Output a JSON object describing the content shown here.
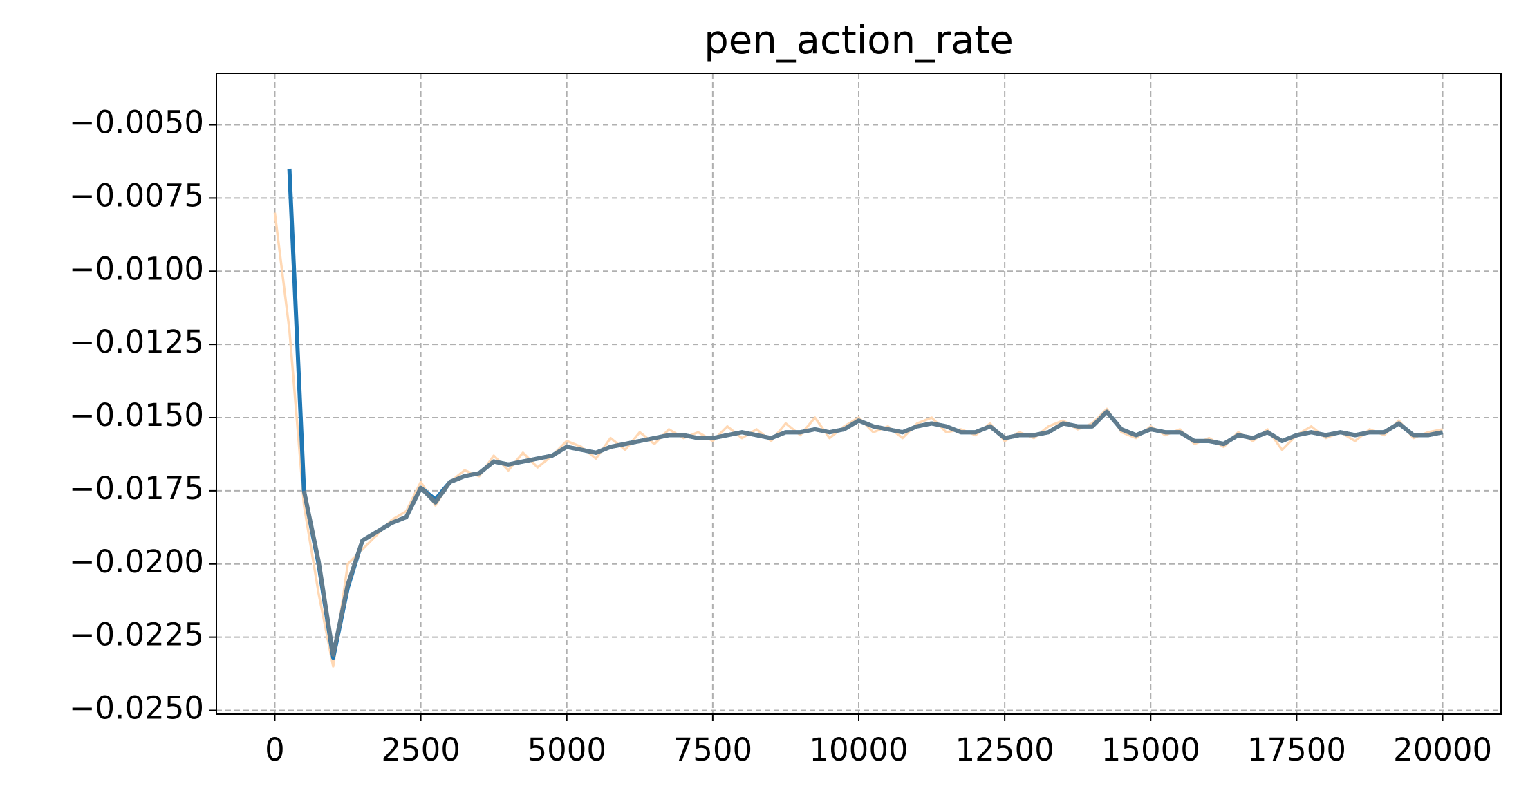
{
  "chart_data": {
    "type": "line",
    "title": "pen_action_rate",
    "x": [
      0,
      250,
      500,
      750,
      1000,
      1250,
      1500,
      1750,
      2000,
      2250,
      2500,
      2750,
      3000,
      3250,
      3500,
      3750,
      4000,
      4250,
      4500,
      4750,
      5000,
      5250,
      5500,
      5750,
      6000,
      6250,
      6500,
      6750,
      7000,
      7250,
      7500,
      7750,
      8000,
      8250,
      8500,
      8750,
      9000,
      9250,
      9500,
      9750,
      10000,
      10250,
      10500,
      10750,
      11000,
      11250,
      11500,
      11750,
      12000,
      12250,
      12500,
      12750,
      13000,
      13250,
      13500,
      13750,
      14000,
      14250,
      14500,
      14750,
      15000,
      15250,
      15500,
      15750,
      16000,
      16250,
      16500,
      16750,
      17000,
      17250,
      17500,
      17750,
      18000,
      18250,
      18500,
      18750,
      19000,
      19250,
      19500,
      19750,
      20000
    ],
    "series": [
      {
        "color": "#ffd8b4",
        "values": [
          -0.008,
          -0.012,
          -0.018,
          -0.021,
          -0.0235,
          -0.02,
          -0.0195,
          -0.019,
          -0.0185,
          -0.0182,
          -0.0172,
          -0.018,
          -0.0172,
          -0.0168,
          -0.017,
          -0.0163,
          -0.0168,
          -0.0162,
          -0.0167,
          -0.0163,
          -0.0158,
          -0.016,
          -0.0164,
          -0.0157,
          -0.0161,
          -0.0155,
          -0.0159,
          -0.0154,
          -0.0157,
          -0.0155,
          -0.0158,
          -0.0153,
          -0.0157,
          -0.0154,
          -0.0158,
          -0.0152,
          -0.0156,
          -0.015,
          -0.0157,
          -0.0153,
          -0.015,
          -0.0155,
          -0.0153,
          -0.0157,
          -0.0152,
          -0.015,
          -0.0155,
          -0.0154,
          -0.0156,
          -0.0152,
          -0.0158,
          -0.0155,
          -0.0157,
          -0.0153,
          -0.0151,
          -0.0154,
          -0.0152,
          -0.0147,
          -0.0155,
          -0.0157,
          -0.0153,
          -0.0156,
          -0.0154,
          -0.0159,
          -0.0157,
          -0.016,
          -0.0155,
          -0.0158,
          -0.0154,
          -0.0161,
          -0.0156,
          -0.0153,
          -0.0157,
          -0.0155,
          -0.0158,
          -0.0154,
          -0.0156,
          -0.0151,
          -0.0157,
          -0.0155,
          -0.0154
        ]
      },
      {
        "color": "#1f77b4",
        "values": [
          null,
          -0.0065,
          -0.0175,
          -0.02,
          -0.0232,
          -0.0208,
          -0.0192,
          -0.0189,
          -0.0186,
          -0.0184,
          -0.0174,
          -0.0178,
          -0.0172,
          -0.017,
          -0.0169,
          -0.0165,
          -0.0166,
          -0.0165,
          -0.0164,
          -0.0163,
          -0.016,
          -0.0161,
          -0.0162,
          -0.016,
          -0.0159,
          -0.0158,
          -0.0157,
          -0.0156,
          -0.0156,
          -0.0157,
          -0.0157,
          -0.0156,
          -0.0155,
          -0.0156,
          -0.0157,
          -0.0155,
          -0.0155,
          -0.0154,
          -0.0155,
          -0.0154,
          -0.0151,
          -0.0153,
          -0.0154,
          -0.0155,
          -0.0153,
          -0.0152,
          -0.0153,
          -0.0155,
          -0.0155,
          -0.0153,
          -0.0157,
          -0.0156,
          -0.0156,
          -0.0155,
          -0.0152,
          -0.0153,
          -0.0153,
          -0.0148,
          -0.0154,
          -0.0156,
          -0.0154,
          -0.0155,
          -0.0155,
          -0.0158,
          -0.0158,
          -0.0159,
          -0.0156,
          -0.0157,
          -0.0155,
          -0.0158,
          -0.0156,
          -0.0155,
          -0.0156,
          -0.0155,
          -0.0156,
          -0.0155,
          -0.0155,
          -0.0152,
          -0.0156,
          -0.0156,
          -0.0155
        ]
      },
      {
        "color": "#607c8e",
        "values": [
          null,
          null,
          -0.0175,
          -0.0199,
          -0.0231,
          -0.0207,
          -0.0192,
          -0.0189,
          -0.0186,
          -0.0184,
          -0.0174,
          -0.0179,
          -0.0172,
          -0.017,
          -0.0169,
          -0.0165,
          -0.0166,
          -0.0165,
          -0.0164,
          -0.0163,
          -0.016,
          -0.0161,
          -0.0162,
          -0.016,
          -0.0159,
          -0.0158,
          -0.0157,
          -0.0156,
          -0.0156,
          -0.0157,
          -0.0157,
          -0.0156,
          -0.0155,
          -0.0156,
          -0.0157,
          -0.0155,
          -0.0155,
          -0.0154,
          -0.0155,
          -0.0154,
          -0.0151,
          -0.0153,
          -0.0154,
          -0.0155,
          -0.0153,
          -0.0152,
          -0.0153,
          -0.0155,
          -0.0155,
          -0.0153,
          -0.0157,
          -0.0156,
          -0.0156,
          -0.0155,
          -0.0152,
          -0.0153,
          -0.0153,
          -0.0148,
          -0.0154,
          -0.0156,
          -0.0154,
          -0.0155,
          -0.0155,
          -0.0158,
          -0.0158,
          -0.0159,
          -0.0156,
          -0.0157,
          -0.0155,
          -0.0158,
          -0.0156,
          -0.0155,
          -0.0156,
          -0.0155,
          -0.0156,
          -0.0155,
          -0.0155,
          -0.0152,
          -0.0156,
          -0.0156,
          -0.0155
        ]
      }
    ],
    "xlim": [
      -1000,
      21000
    ],
    "ylim": [
      -0.02513,
      -0.00324
    ],
    "xticks": [
      0,
      2500,
      5000,
      7500,
      10000,
      12500,
      15000,
      17500,
      20000
    ],
    "yticks": [
      {
        "value": -0.005,
        "label": "−0.0050"
      },
      {
        "value": -0.0075,
        "label": "−0.0075"
      },
      {
        "value": -0.01,
        "label": "−0.0100"
      },
      {
        "value": -0.0125,
        "label": "−0.0125"
      },
      {
        "value": -0.015,
        "label": "−0.0150"
      },
      {
        "value": -0.0175,
        "label": "−0.0175"
      },
      {
        "value": -0.02,
        "label": "−0.0200"
      },
      {
        "value": -0.0225,
        "label": "−0.0225"
      },
      {
        "value": -0.025,
        "label": "−0.0250"
      }
    ],
    "grid": true
  }
}
